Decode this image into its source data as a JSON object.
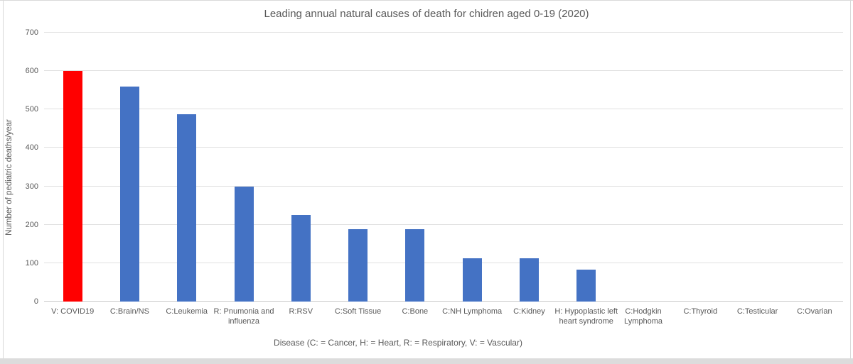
{
  "window": {
    "background": "#ffffff",
    "edge_color": "#d9d9d9",
    "bottom_strip_color": "#dcdcdc"
  },
  "chart_data": {
    "type": "bar",
    "title": "Leading annual natural causes of death for chidren aged 0-19 (2020)",
    "xlabel": "Disease (C: = Cancer, H: = Heart, R: = Respiratory, V: = Vascular)",
    "ylabel": "Number of pediatric deaths/year",
    "ylim": [
      0,
      700
    ],
    "ytick_step": 100,
    "ytick_labels": [
      "0",
      "100",
      "200",
      "300",
      "400",
      "500",
      "600",
      "700"
    ],
    "grid": true,
    "legend": "none",
    "categories": [
      "V: COVID19",
      "C:Brain/NS",
      "C:Leukemia",
      "R: Pnumonia and influenza",
      "R:RSV",
      "C:Soft Tissue",
      "C:Bone",
      "C:NH Lymphoma",
      "C:Kidney",
      "H: Hypoplastic left heart syndrome",
      "C:Hodgkin Lymphoma",
      "C:Thyroid",
      "C:Testicular",
      "C:Ovarian"
    ],
    "values": [
      600,
      560,
      487,
      300,
      225,
      188,
      188,
      113,
      113,
      83,
      0,
      0,
      0,
      0
    ],
    "bar_colors": [
      "#ff0000",
      "#4472c4",
      "#4472c4",
      "#4472c4",
      "#4472c4",
      "#4472c4",
      "#4472c4",
      "#4472c4",
      "#4472c4",
      "#4472c4",
      "#4472c4",
      "#4472c4",
      "#4472c4",
      "#4472c4"
    ],
    "colors": {
      "highlight_bar": "#ff0000",
      "default_bar": "#4472c4",
      "gridline": "#e0e0e0",
      "axis_line": "#c9c9c9",
      "text": "#595959"
    }
  }
}
